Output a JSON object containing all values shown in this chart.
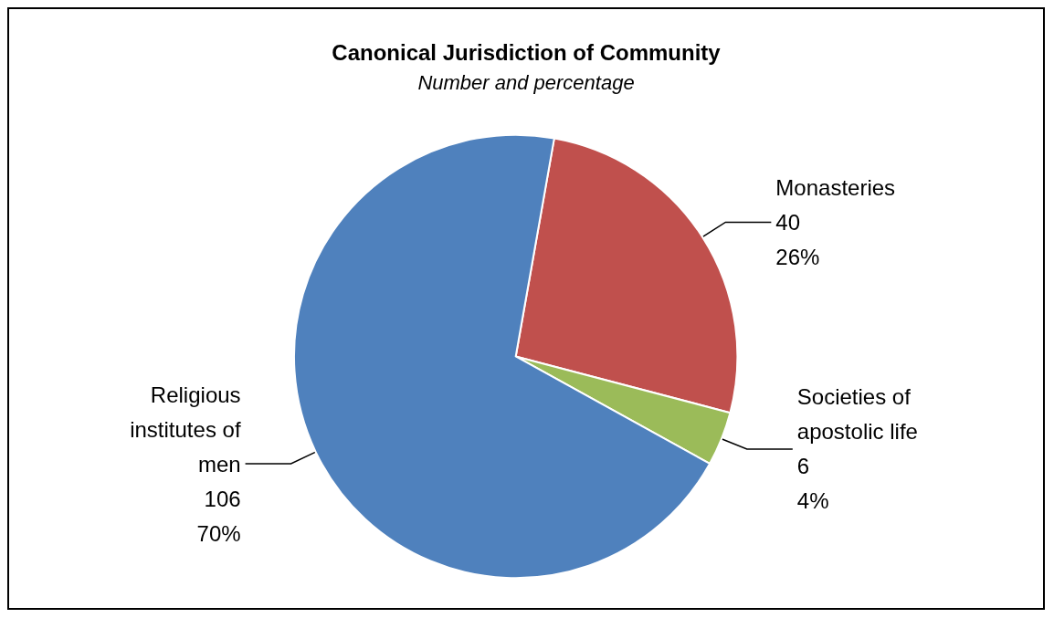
{
  "chart_data": {
    "type": "pie",
    "title": "Canonical Jurisdiction of Community",
    "subtitle": "Number and percentage",
    "categories": [
      "Monasteries",
      "Societies of apostolic life",
      "Religious institutes of men"
    ],
    "values": [
      40,
      6,
      106
    ],
    "colors": [
      "#c0504d",
      "#9bbb59",
      "#4f81bd"
    ],
    "value_labels": [
      "40\n26%",
      "6\n4%",
      "106\n70%"
    ],
    "legend": false
  }
}
